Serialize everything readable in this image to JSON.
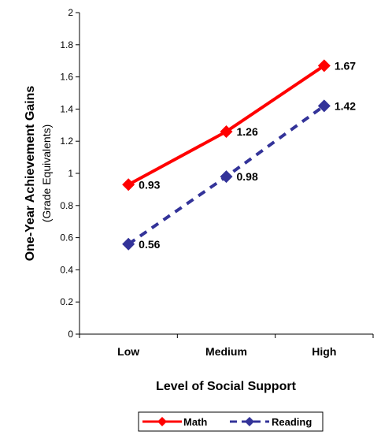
{
  "chart_data": {
    "type": "line",
    "categories": [
      "Low",
      "Medium",
      "High"
    ],
    "series": [
      {
        "name": "Math",
        "values": [
          0.93,
          1.26,
          1.67
        ],
        "labels": [
          "0.93",
          "1.26",
          "1.67"
        ],
        "color": "#ff0000",
        "dash": "solid"
      },
      {
        "name": "Reading",
        "values": [
          0.56,
          0.98,
          1.42
        ],
        "labels": [
          "0.56",
          "0.98",
          "1.42"
        ],
        "color": "#333399",
        "dash": "dashed"
      }
    ],
    "xlabel": "Level of Social Support",
    "ylabel": "One-Year Achievement Gains",
    "ylabel_sub": "(Grade Equivalents)",
    "ylim": [
      0,
      2
    ],
    "yticks": [
      "0",
      "0.2",
      "0.4",
      "0.6",
      "0.8",
      "1",
      "1.2",
      "1.4",
      "1.6",
      "1.8",
      "2"
    ],
    "grid": false,
    "legend": "bottom"
  }
}
